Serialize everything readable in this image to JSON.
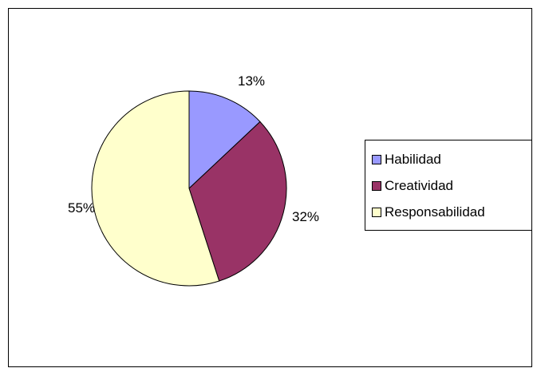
{
  "chart_data": {
    "type": "pie",
    "categories": [
      "Habilidad",
      "Creatividad",
      "Responsabilidad"
    ],
    "values": [
      13,
      32,
      55
    ],
    "data_labels": [
      "13%",
      "32%",
      "55%"
    ],
    "colors": [
      "#9999ff",
      "#993366",
      "#ffffcc"
    ],
    "legend_position": "right",
    "title": ""
  }
}
